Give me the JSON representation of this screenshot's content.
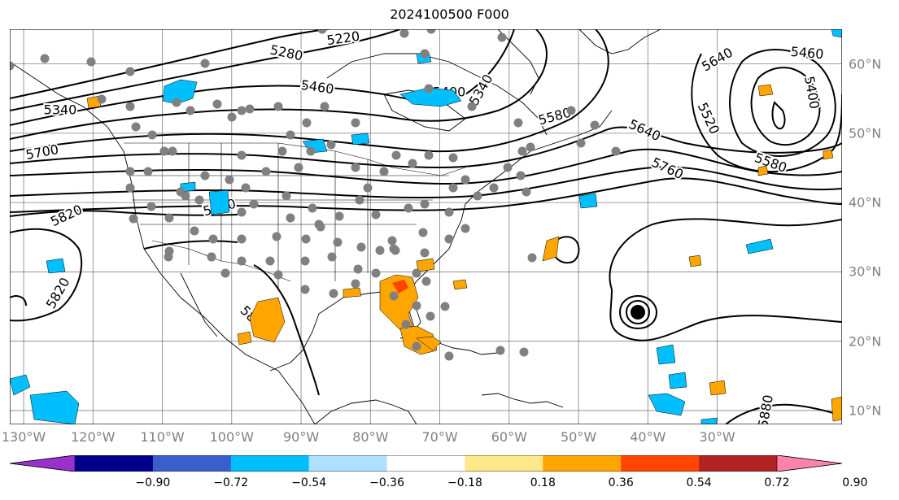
{
  "title": "2024100500 F000",
  "lon_labels": [
    "130°W",
    "120°W",
    "110°W",
    "100°W",
    "90°W",
    "80°W",
    "70°W",
    "60°W",
    "50°W",
    "40°W",
    "30°W"
  ],
  "lon_values": [
    -130,
    -120,
    -110,
    -100,
    -90,
    -80,
    -70,
    -60,
    -50,
    -40,
    -30
  ],
  "lat_labels": [
    "60°N",
    "50°N",
    "40°N",
    "30°N",
    "20°N",
    "10°N"
  ],
  "lat_values": [
    60,
    50,
    40,
    30,
    20,
    10
  ],
  "extent": {
    "lon_min": -132,
    "lon_max": -12,
    "lat_min": 8,
    "lat_max": 65
  },
  "contour_labels": [
    "5220",
    "5280",
    "5340",
    "5400",
    "5460",
    "5460",
    "5400",
    "5520",
    "5580",
    "5580",
    "5640",
    "5640",
    "5700",
    "5760",
    "5820",
    "5820",
    "5880",
    "5880",
    "5880",
    "5340"
  ],
  "colorbar": {
    "ticks": [
      "−0.90",
      "−0.72",
      "−0.54",
      "−0.36",
      "−0.18",
      "0.18",
      "0.36",
      "0.54",
      "0.72",
      "0.90"
    ],
    "tick_values": [
      -0.9,
      -0.72,
      -0.54,
      -0.36,
      -0.18,
      0.18,
      0.36,
      0.54,
      0.72,
      0.9
    ],
    "colors": [
      "#9932cc",
      "#00008b",
      "#3a5fcd",
      "#00bfff",
      "#b0e0ff",
      "#ffffff",
      "#ffe88a",
      "#ffa500",
      "#ff4500",
      "#b22222",
      "#ff82ab"
    ]
  },
  "colors": {
    "grid": "#808080",
    "station": "#808080",
    "contour": "#000000",
    "positive": "#ffa500",
    "negative": "#00bfff",
    "strong_positive": "#ff4500"
  }
}
